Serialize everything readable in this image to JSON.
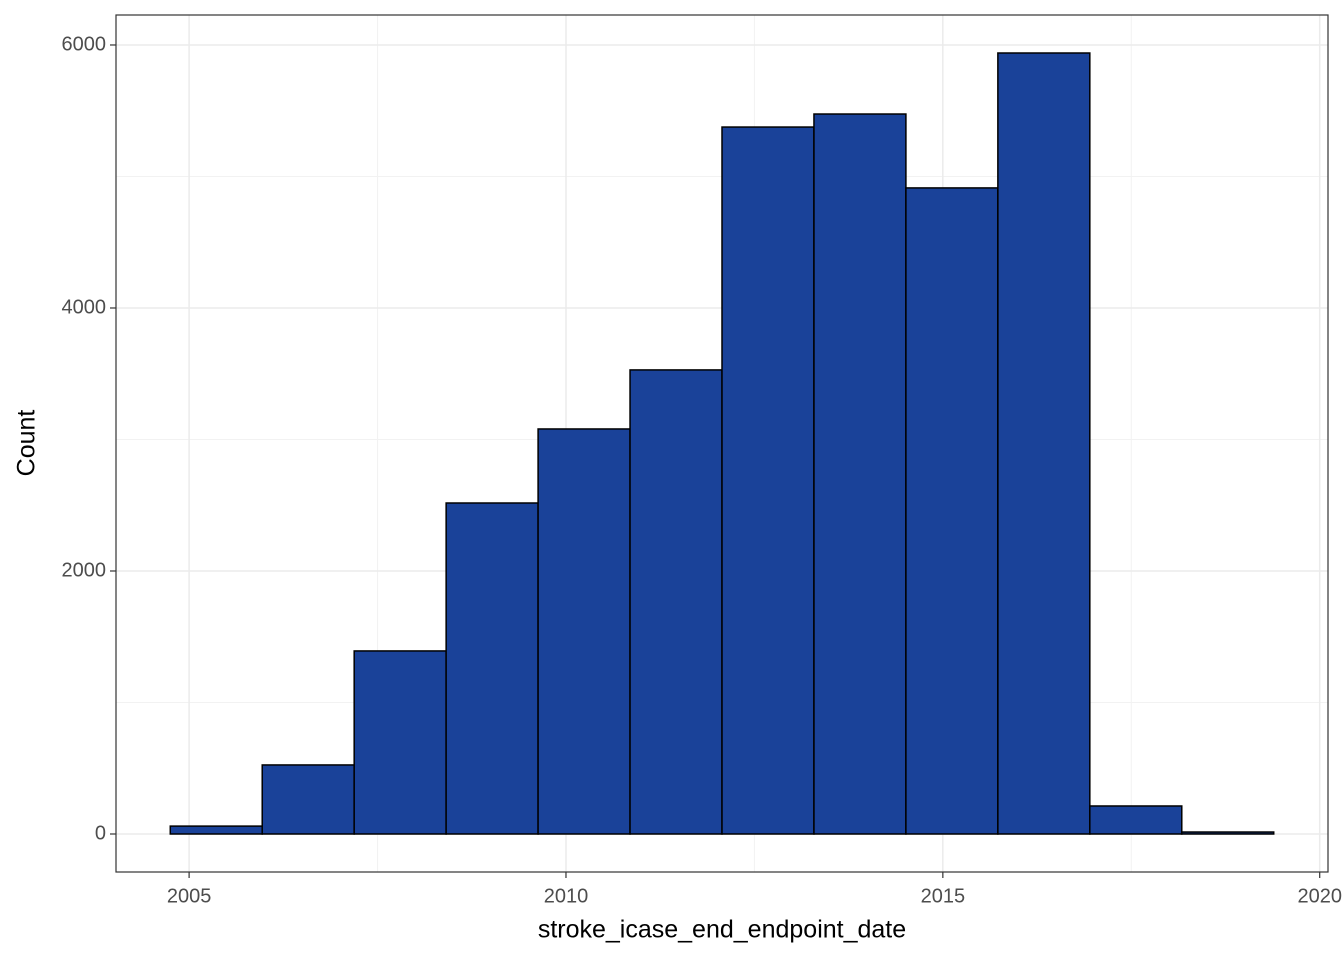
{
  "chart_data": {
    "type": "histogram",
    "x_label": "stroke_icase_end_endpoint_date",
    "y_label": "Count",
    "bins": [
      2004.75,
      2005.97,
      2007.19,
      2008.41,
      2009.63,
      2010.85,
      2012.07,
      2013.29,
      2014.51,
      2015.73,
      2016.95,
      2018.17,
      2019.39
    ],
    "counts": [
      60,
      525,
      1392,
      2517,
      3080,
      3529,
      5376,
      5475,
      4913,
      5939,
      213,
      15
    ],
    "color": "#1a4299",
    "edge_color": "#000000",
    "xlim": [
      2004.03,
      2020.11
    ],
    "ylim": [
      -289,
      6228
    ],
    "xticks": [
      2005,
      2010,
      2015,
      2020
    ],
    "yticks": [
      0,
      2000,
      4000,
      6000
    ],
    "x_minor_ticks": [
      2007.5,
      2012.5,
      2017.5
    ],
    "y_minor_ticks": [
      1000,
      3000,
      5000
    ],
    "grid": true
  }
}
